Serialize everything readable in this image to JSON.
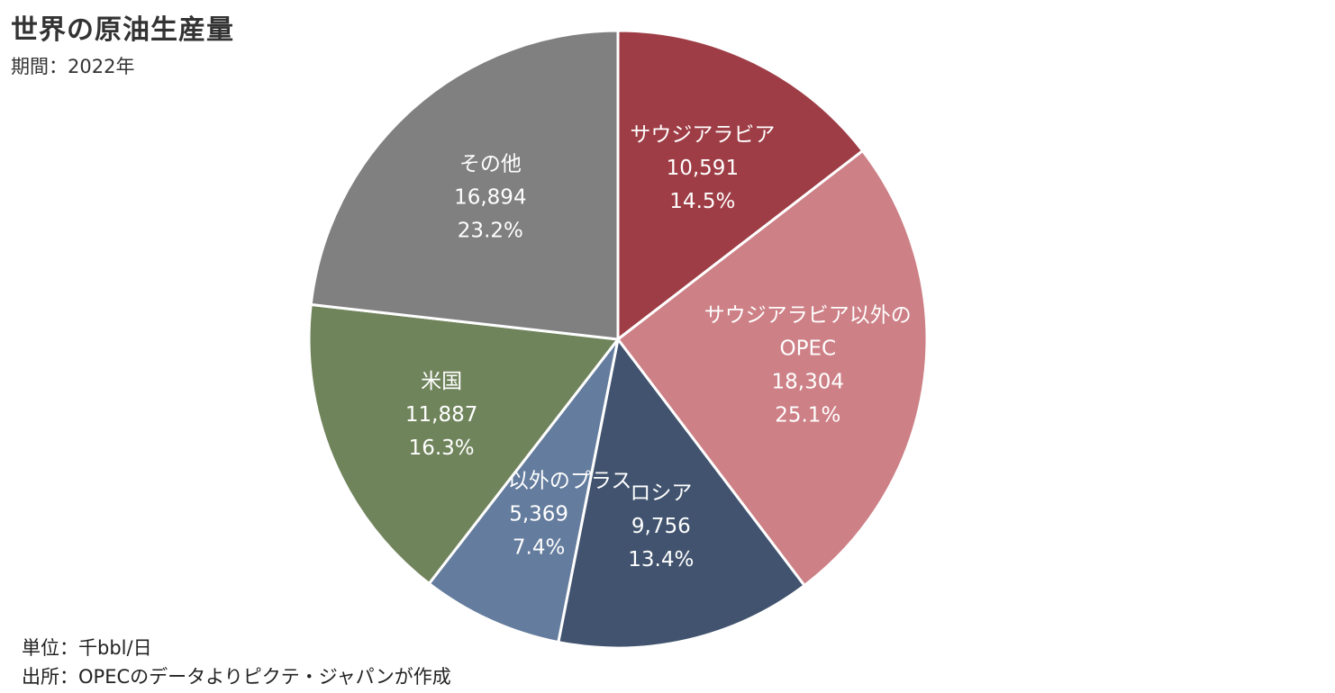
{
  "chart_data": {
    "type": "pie",
    "title": "世界の原油生産量",
    "subtitle": "期間：2022年",
    "unit_note": "単位：千bbl/日",
    "source_note": "出所：OPECのデータよりピクテ・ジャパンが作成",
    "slices": [
      {
        "label": "サウジアラビア",
        "value_text": "10,591",
        "value": 10591,
        "percent_text": "14.5%",
        "percent": 14.5,
        "color": "#9e3d45"
      },
      {
        "label": "サウジアラビア以外のOPEC",
        "label_lines": [
          "サウジアラビア以外の",
          "OPEC"
        ],
        "value_text": "18,304",
        "value": 18304,
        "percent_text": "25.1%",
        "percent": 25.1,
        "color": "#cd8086"
      },
      {
        "label": "ロシア",
        "value_text": "9,756",
        "value": 9756,
        "percent_text": "13.4%",
        "percent": 13.4,
        "color": "#41536e"
      },
      {
        "label": "ロシア以外のプラス",
        "value_text": "5,369",
        "value": 5369,
        "percent_text": "7.4%",
        "percent": 7.4,
        "color": "#647c9d"
      },
      {
        "label": "米国",
        "value_text": "11,887",
        "value": 11887,
        "percent_text": "16.3%",
        "percent": 16.3,
        "color": "#70845c"
      },
      {
        "label": "その他",
        "value_text": "16,894",
        "value": 16894,
        "percent_text": "23.2%",
        "percent": 23.2,
        "color": "#808080"
      }
    ]
  }
}
